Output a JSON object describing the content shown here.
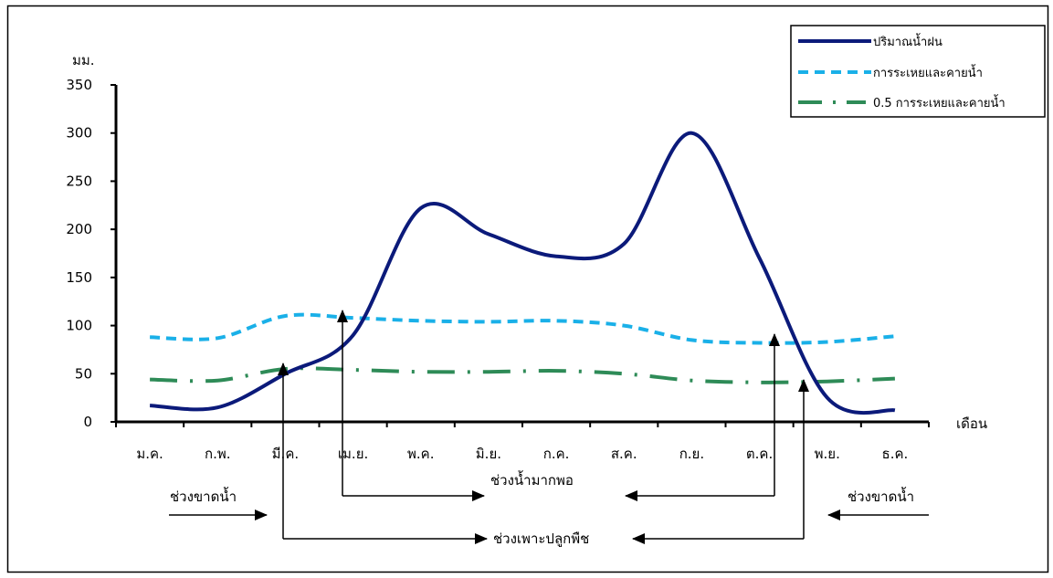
{
  "chart_data": {
    "type": "line",
    "ylabel": "มม.",
    "xlabel": "เดือน",
    "ylim": [
      0,
      350
    ],
    "yticks": [
      0,
      50,
      100,
      150,
      200,
      250,
      300,
      350
    ],
    "categories": [
      "ม.ค.",
      "ก.พ.",
      "มี.ค.",
      "เม.ย.",
      "พ.ค.",
      "มิ.ย.",
      "ก.ค.",
      "ส.ค.",
      "ก.ย.",
      "ต.ค.",
      "พ.ย.",
      "ธ.ค."
    ],
    "grid": false,
    "legend_position": "top-right",
    "series": [
      {
        "name": "ปริมาณน้ำฝน",
        "color": "#0b1a7a",
        "style": "solid",
        "values": [
          17,
          15,
          50,
          90,
          222,
          195,
          172,
          185,
          300,
          170,
          25,
          12
        ]
      },
      {
        "name": "การระเหยและคายน้ำ",
        "color": "#1ab0e8",
        "style": "dashed",
        "values": [
          88,
          87,
          110,
          108,
          105,
          104,
          105,
          100,
          85,
          82,
          83,
          89
        ]
      },
      {
        "name": "0.5 การระเหยและคายน้ำ",
        "color": "#2e8b57",
        "style": "dashdot",
        "values": [
          44,
          43,
          55,
          54,
          52,
          52,
          53,
          50,
          43,
          41,
          42,
          45
        ]
      }
    ],
    "annotations": {
      "dry_left": "ช่วงขาดน้ำ",
      "dry_right": "ช่วงขาดน้ำ",
      "surplus": "ช่วงน้ำมากพอ",
      "growing": "ช่วงเพาะปลูกพืช"
    }
  }
}
